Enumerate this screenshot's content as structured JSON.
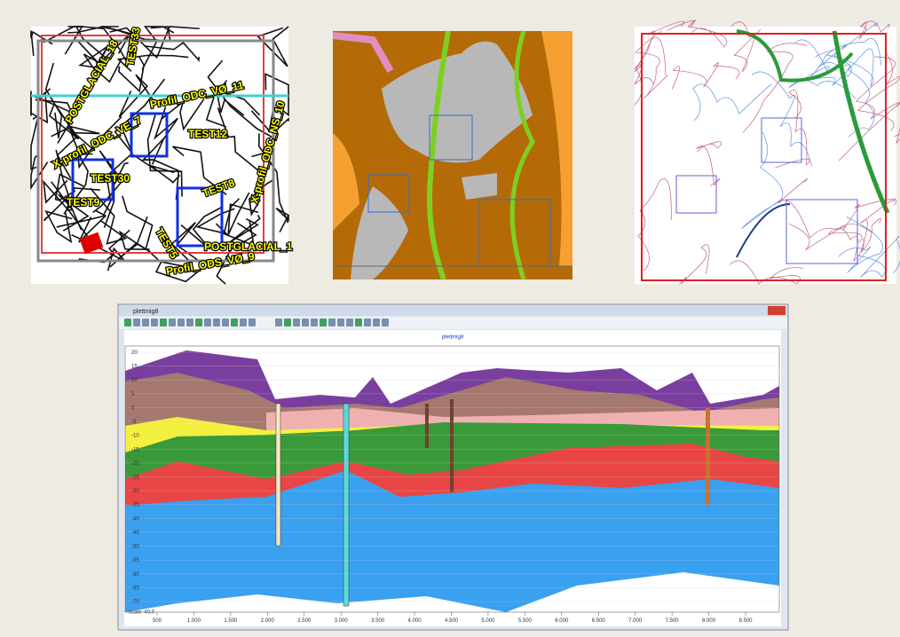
{
  "maps": [
    {
      "labels": [
        "TEST33",
        "Profil_ODC_VØ_11",
        "POSTGLACIAL_18",
        "X-profil_ODC_VE_7",
        "TEST12",
        "TEST30",
        "TEST9",
        "TEST8",
        "TEST5",
        "POSTGLACIAL_1",
        "Profil_ODS_VØ_9",
        "X-profil_ODC_NS_10"
      ]
    }
  ],
  "window": {
    "title": "plettmig8",
    "chart_title": "plettmig8",
    "y_ticks": [
      20,
      15,
      10,
      5,
      0,
      -5,
      -10,
      -15,
      -20,
      -25,
      -30,
      -35,
      -40,
      -45,
      -50,
      -55,
      -60,
      -65,
      -70
    ],
    "x_ticks": [
      "500",
      "1.000",
      "1.500",
      "2.000",
      "2.500",
      "3.000",
      "3.500",
      "4.000",
      "4.500",
      "5.000",
      "5.500",
      "6.000",
      "6.500",
      "7.000",
      "7.500",
      "8.000",
      "8.500"
    ],
    "scale_label": "scale: 40,0"
  }
}
